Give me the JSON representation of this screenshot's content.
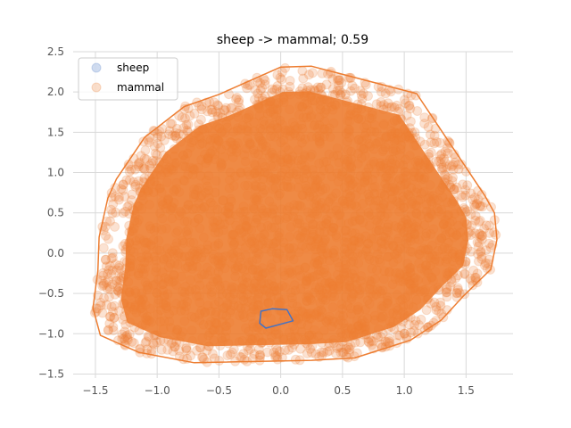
{
  "chart_data": {
    "type": "scatter",
    "title": "sheep -> mammal; 0.59",
    "xlabel": "",
    "ylabel": "",
    "xlim": [
      -1.68,
      1.88
    ],
    "ylim": [
      -1.55,
      2.5
    ],
    "xticks": [
      -1.5,
      -1.0,
      -0.5,
      0.0,
      0.5,
      1.0,
      1.5
    ],
    "xtick_labels": [
      "−1.5",
      "−1.0",
      "−0.5",
      "0.0",
      "0.5",
      "1.0",
      "1.5"
    ],
    "yticks": [
      -1.5,
      -1.0,
      -0.5,
      0.0,
      0.5,
      1.0,
      1.5,
      2.0,
      2.5
    ],
    "ytick_labels": [
      "−1.5",
      "−1.0",
      "−0.5",
      "0.0",
      "0.5",
      "1.0",
      "1.5",
      "2.0",
      "2.5"
    ],
    "grid": true,
    "legend_position": "top-left",
    "series": [
      {
        "name": "sheep",
        "color": "#4472c4",
        "hull": [
          [
            -0.07,
            -0.69
          ],
          [
            0.05,
            -0.7
          ],
          [
            0.1,
            -0.84
          ],
          [
            -0.12,
            -0.93
          ],
          [
            -0.17,
            -0.87
          ],
          [
            -0.16,
            -0.72
          ]
        ]
      },
      {
        "name": "mammal",
        "color": "#ed7d31",
        "hull": [
          [
            0.0,
            2.31
          ],
          [
            0.25,
            2.32
          ],
          [
            1.1,
            1.98
          ],
          [
            1.65,
            0.72
          ],
          [
            1.73,
            0.5
          ],
          [
            1.75,
            0.17
          ],
          [
            1.7,
            -0.2
          ],
          [
            1.48,
            -0.53
          ],
          [
            1.3,
            -0.83
          ],
          [
            1.05,
            -1.08
          ],
          [
            0.6,
            -1.3
          ],
          [
            0.25,
            -1.33
          ],
          [
            -0.7,
            -1.36
          ],
          [
            -1.15,
            -1.23
          ],
          [
            -1.46,
            -1.02
          ],
          [
            -1.52,
            -0.68
          ],
          [
            -1.48,
            -0.22
          ],
          [
            -1.47,
            0.2
          ],
          [
            -1.4,
            0.68
          ],
          [
            -1.33,
            0.92
          ],
          [
            -1.1,
            1.44
          ],
          [
            -0.78,
            1.82
          ],
          [
            -0.5,
            1.97
          ]
        ]
      }
    ]
  }
}
